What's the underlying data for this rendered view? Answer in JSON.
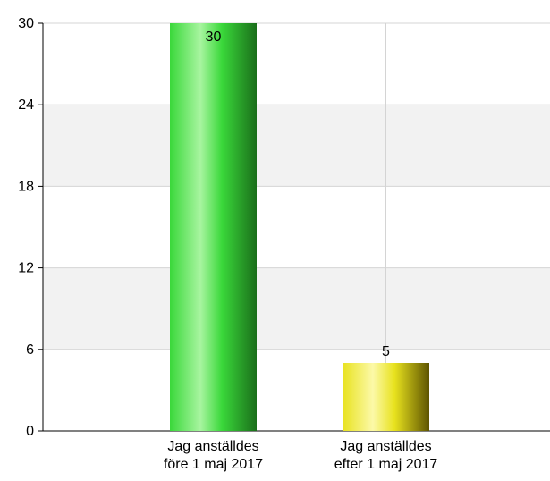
{
  "chart_data": {
    "type": "bar",
    "categories": [
      [
        "Jag anställdes",
        "före 1 maj 2017"
      ],
      [
        "Jag anställdes",
        "efter 1 maj 2017"
      ]
    ],
    "values": [
      30,
      5
    ],
    "data_labels": [
      "30",
      "5"
    ],
    "bar_colors": [
      {
        "light": "#a8f5a0",
        "base": "#3ad83a",
        "dark": "#1a6e1a"
      },
      {
        "light": "#fcf9a8",
        "base": "#e8e21e",
        "dark": "#5e5400"
      }
    ],
    "ylim": [
      0,
      30
    ],
    "yticks": [
      "0",
      "6",
      "12",
      "18",
      "24",
      "30"
    ],
    "grid": true,
    "band_color": "#f2f2f2",
    "title": "",
    "xlabel": "",
    "ylabel": ""
  }
}
